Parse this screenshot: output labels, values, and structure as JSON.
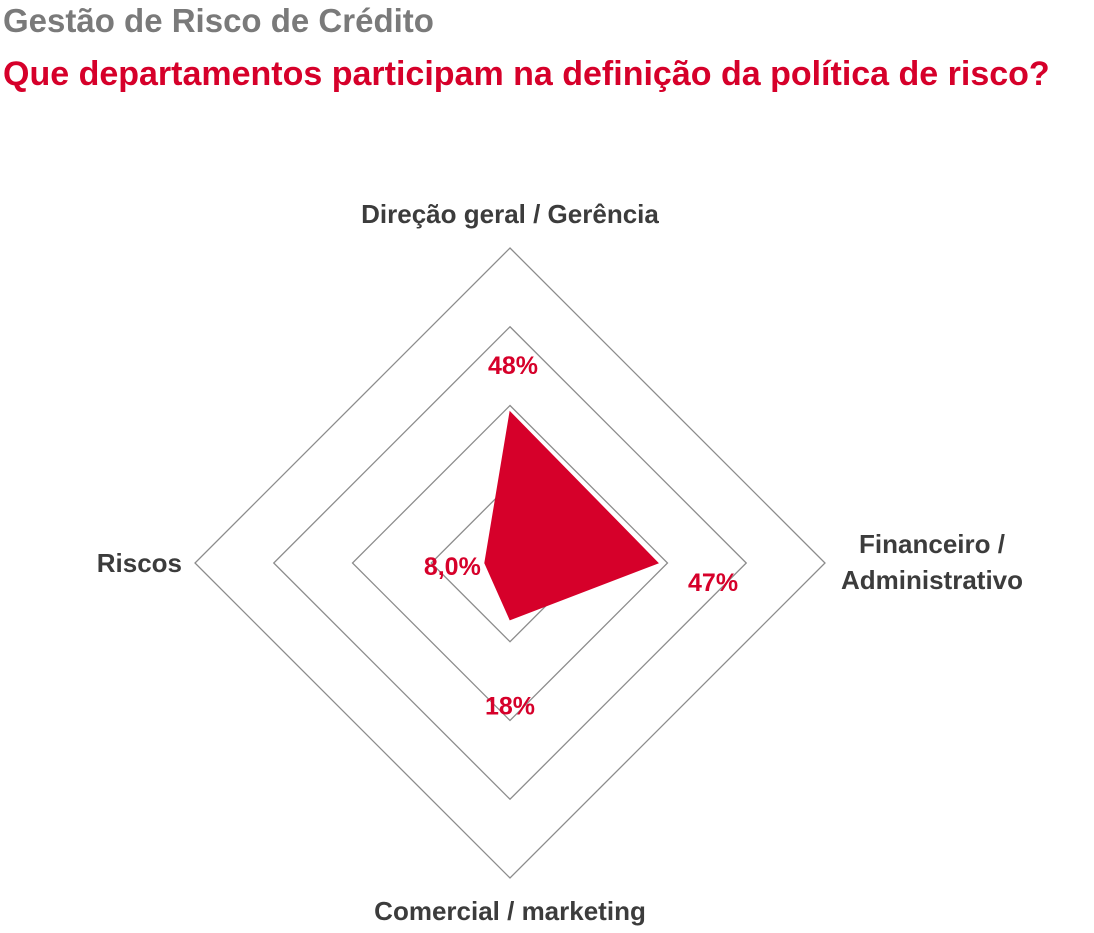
{
  "header": {
    "supertitle": "Gestão de Risco de Crédito",
    "title": "Que departamentos participam na definição da política de risco?"
  },
  "colors": {
    "accent": "#d6002a",
    "supertitle": "#7a7a7a",
    "axis_text": "#3c3c3c",
    "grid": "#8c8c8c"
  },
  "chart_data": {
    "type": "radar",
    "title": "",
    "axes": [
      {
        "label_lines": [
          "Direção geral / Gerência"
        ],
        "value": 48,
        "value_label": "48%"
      },
      {
        "label_lines": [
          "Financeiro /",
          "Administrativo"
        ],
        "value": 47,
        "value_label": "47%"
      },
      {
        "label_lines": [
          "Comercial / marketing"
        ],
        "value": 18,
        "value_label": "18%"
      },
      {
        "label_lines": [
          "Riscos"
        ],
        "value": 8,
        "value_label": "8,0%"
      }
    ],
    "range": [
      0,
      100
    ],
    "grid_levels": [
      25,
      50,
      75,
      100
    ],
    "grid": true,
    "legend": "none"
  }
}
